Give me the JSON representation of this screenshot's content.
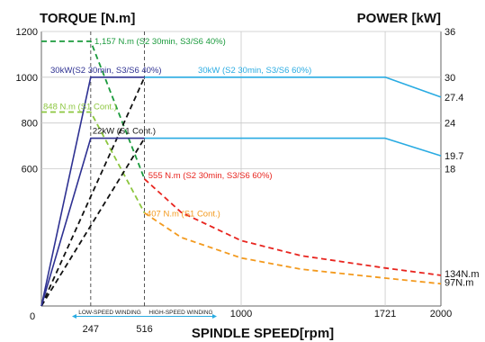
{
  "chart_data": {
    "type": "line",
    "title_left": "TORQUE [N.m]",
    "title_right": "POWER [kW]",
    "xlabel": "SPINDLE SPEED[rpm]",
    "xlim": [
      0,
      2000
    ],
    "torque_ylim": [
      0,
      1200
    ],
    "power_ylim": [
      0,
      36
    ],
    "x_ticks": [
      "0",
      "247",
      "516",
      "1000",
      "1721",
      "2000"
    ],
    "x_tick_values": [
      0,
      247,
      516,
      1000,
      1721,
      2000
    ],
    "torque_ticks": [
      "1200",
      "1000",
      "800",
      "600"
    ],
    "torque_tick_values": [
      1200,
      1000,
      800,
      600
    ],
    "power_ticks": [
      "36",
      "30",
      "27.4",
      "24",
      "19.7",
      "18"
    ],
    "power_tick_values": [
      36,
      30,
      27.4,
      24,
      19.7,
      18
    ],
    "torque_end_labels": [
      "134N.m",
      "97N.m"
    ],
    "winding_labels": {
      "low": "LOW-SPEED WINDING",
      "high": "HIGH-SPEED WINDING"
    },
    "annotations": {
      "torque_s2": "1,157 N.m (S2 30min, S3/S6 40%)",
      "torque_s1": "848 N.m (S1 Cont.)",
      "torque_high_s2": "555 N.m (S2 30min, S3/S6 60%)",
      "torque_high_s1": "407 N.m (S1 Cont.)",
      "power_low": "30kW(S2 30min, S3/S6 40%)",
      "power_high": "30kW (S2 30min, S3/S6 60%)",
      "power_cont": "22kW (S1 Cont.)"
    },
    "series": [
      {
        "axis": "torque",
        "style": "dashed",
        "color": "#1a9a3c",
        "points": [
          [
            0,
            1157
          ],
          [
            247,
            1157
          ],
          [
            516,
            555
          ]
        ]
      },
      {
        "axis": "torque",
        "style": "dashed",
        "color": "#8cc63f",
        "points": [
          [
            0,
            848
          ],
          [
            247,
            848
          ],
          [
            516,
            407
          ]
        ]
      },
      {
        "axis": "torque",
        "style": "dashed",
        "color": "#e8251f",
        "points": [
          [
            516,
            555
          ],
          [
            700,
            409
          ],
          [
            1000,
            286
          ],
          [
            1300,
            220
          ],
          [
            1721,
            166
          ],
          [
            2000,
            134
          ]
        ]
      },
      {
        "axis": "torque",
        "style": "dashed",
        "color": "#f39a1e",
        "points": [
          [
            516,
            407
          ],
          [
            700,
            300
          ],
          [
            1000,
            210
          ],
          [
            1300,
            161
          ],
          [
            1721,
            122
          ],
          [
            2000,
            97
          ]
        ]
      },
      {
        "axis": "power",
        "style": "dashed",
        "color": "#111111",
        "points": [
          [
            0,
            0
          ],
          [
            516,
            30
          ]
        ]
      },
      {
        "axis": "power",
        "style": "dashed",
        "color": "#111111",
        "points": [
          [
            0,
            0
          ],
          [
            516,
            22
          ]
        ]
      },
      {
        "axis": "power",
        "style": "solid",
        "color": "#2e3192",
        "points": [
          [
            0,
            0
          ],
          [
            247,
            30
          ],
          [
            516,
            30
          ]
        ]
      },
      {
        "axis": "power",
        "style": "solid",
        "color": "#2e3192",
        "points": [
          [
            0,
            0
          ],
          [
            247,
            22
          ],
          [
            516,
            22
          ]
        ]
      },
      {
        "axis": "power",
        "style": "solid",
        "color": "#29abe2",
        "points": [
          [
            516,
            30
          ],
          [
            1721,
            30
          ],
          [
            2000,
            27.4
          ]
        ]
      },
      {
        "axis": "power",
        "style": "solid",
        "color": "#29abe2",
        "points": [
          [
            516,
            22
          ],
          [
            1721,
            22
          ],
          [
            2000,
            19.7
          ]
        ]
      }
    ],
    "grid": true,
    "legend": "none"
  }
}
